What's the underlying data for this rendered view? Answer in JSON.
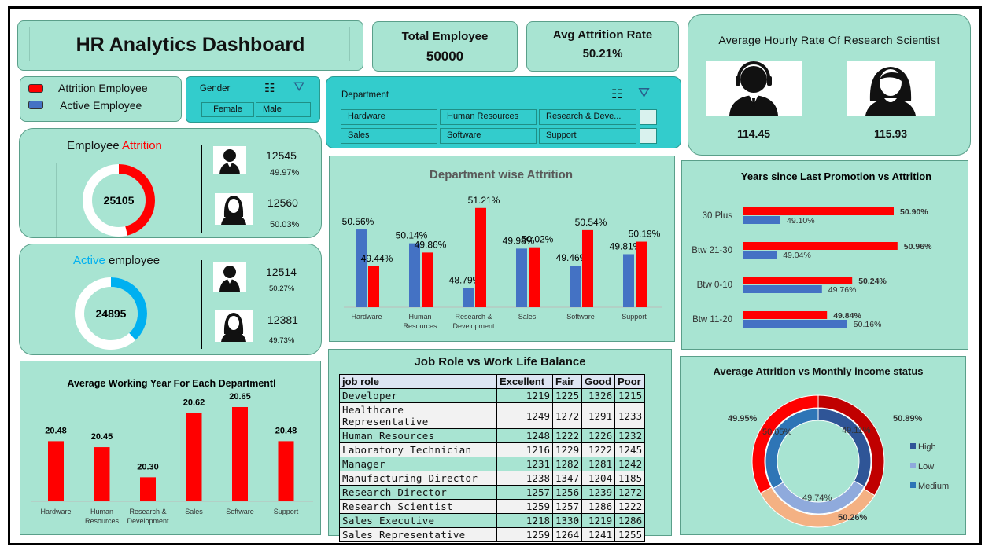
{
  "title": "HR Analytics Dashboard",
  "kpis": {
    "total_label": "Total Employee",
    "total_value": "50000",
    "attr_label": "Avg Attrition Rate",
    "attr_value": "50.21%"
  },
  "legend": {
    "attrition": "Attrition Employee",
    "active": "Active Employee",
    "attrition_color": "#ff0000",
    "active_color": "#4472c4"
  },
  "gender_slicer": {
    "label": "Gender",
    "options": [
      "Female",
      "Male"
    ]
  },
  "dept_slicer": {
    "label": "Department",
    "options": [
      "Hardware",
      "Human Resources",
      "Research & Deve...",
      "Sales",
      "Software",
      "Support"
    ]
  },
  "hourly": {
    "title": "Average Hourly Rate Of Research Scientist",
    "male": "114.45",
    "female": "115.93"
  },
  "attrition_panel": {
    "title_a": "Employee",
    "title_b": "Attrition",
    "total": "25105",
    "male_count": "12545",
    "male_pct": "49.97%",
    "female_count": "12560",
    "female_pct": "50.03%"
  },
  "active_panel": {
    "title_a": "Active",
    "title_b": "employee",
    "total": "24895",
    "male_count": "12514",
    "male_pct": "50.27%",
    "female_count": "12381",
    "female_pct": "49.73%"
  },
  "chart_data": [
    {
      "type": "bar",
      "title": "Department wise Attrition",
      "categories": [
        "Hardware",
        "Human Resources",
        "Research & Development",
        "Sales",
        "Software",
        "Support"
      ],
      "series": [
        {
          "values": [
            50.56,
            50.14,
            48.79,
            49.98,
            49.46,
            49.81
          ],
          "labels": [
            "50.56%",
            "50.14%",
            "48.79%",
            "49.98%",
            "49.46%",
            "49.81%"
          ],
          "color": "#4472c4"
        },
        {
          "values": [
            49.44,
            49.86,
            51.21,
            50.02,
            50.54,
            50.19
          ],
          "labels": [
            "49.44%",
            "49.86%",
            "51.21%",
            "50.02%",
            "50.54%",
            "50.19%"
          ],
          "color": "#ff0000"
        }
      ]
    },
    {
      "type": "bar",
      "orientation": "horizontal",
      "title": "Years since Last  Promotion vs Attrition",
      "categories": [
        "30 Plus",
        "Btw 21-30",
        "Btw 0-10",
        "Btw 11-20"
      ],
      "series": [
        {
          "values": [
            50.9,
            50.96,
            50.24,
            49.84
          ],
          "labels": [
            "50.90%",
            "50.96%",
            "50.24%",
            "49.84%"
          ],
          "color": "#ff0000"
        },
        {
          "values": [
            49.1,
            49.04,
            49.76,
            50.16
          ],
          "labels": [
            "49.10%",
            "49.04%",
            "49.76%",
            "50.16%"
          ],
          "color": "#4472c4"
        }
      ]
    },
    {
      "type": "bar",
      "title": "Average Working Year For Each Departmentl",
      "categories": [
        "Hardware",
        "Human Resources",
        "Research & Development",
        "Sales",
        "Software",
        "Support"
      ],
      "values": [
        20.48,
        20.45,
        20.3,
        20.62,
        20.65,
        20.48
      ],
      "labels": [
        "20.48",
        "20.45",
        "20.30",
        "20.62",
        "20.65",
        "20.48"
      ],
      "color": "#ff0000"
    },
    {
      "type": "table",
      "title": "Job Role vs Work Life Balance",
      "columns": [
        "job role",
        "Excellent",
        "Fair",
        "Good",
        "Poor"
      ],
      "rows": [
        [
          "Developer",
          1219,
          1225,
          1326,
          1215
        ],
        [
          "Healthcare Representative",
          1249,
          1272,
          1291,
          1233
        ],
        [
          "Human Resources",
          1248,
          1222,
          1226,
          1232
        ],
        [
          "Laboratory Technician",
          1216,
          1229,
          1222,
          1245
        ],
        [
          "Manager",
          1231,
          1282,
          1281,
          1242
        ],
        [
          "Manufacturing Director",
          1238,
          1347,
          1204,
          1185
        ],
        [
          "Research Director",
          1257,
          1256,
          1239,
          1272
        ],
        [
          "Research Scientist",
          1259,
          1257,
          1286,
          1222
        ],
        [
          "Sales Executive",
          1218,
          1330,
          1219,
          1286
        ],
        [
          "Sales Representative",
          1259,
          1264,
          1241,
          1255
        ]
      ]
    },
    {
      "type": "pie",
      "title": "Average Attrition vs Monthly income status",
      "legend": [
        "High",
        "Low",
        "Medium"
      ],
      "outer": {
        "values": [
          50.89,
          50.26,
          49.95
        ],
        "labels": [
          "50.89%",
          "50.26%",
          "49.95%"
        ],
        "colors": [
          "#c00000",
          "#f4b183",
          "#ff0000"
        ]
      },
      "inner": {
        "values": [
          49.11,
          49.74,
          50.05
        ],
        "labels": [
          "49.11%",
          "49.74%",
          "50.05%"
        ],
        "colors": [
          "#2f5597",
          "#8faadc",
          "#2e75b6"
        ]
      }
    }
  ]
}
